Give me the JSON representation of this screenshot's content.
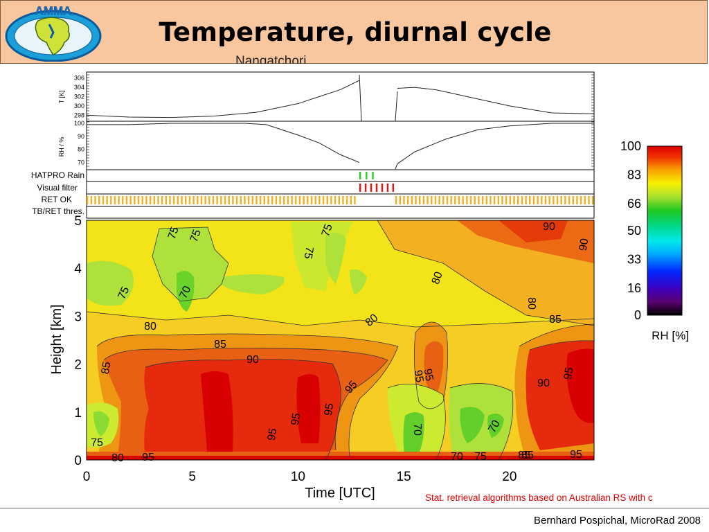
{
  "header": {
    "logo_text": "AMMA",
    "title": "Temperature, diurnal cycle"
  },
  "station_text": "Nangatchori",
  "panels": {
    "temp": {
      "ylabel": "T [K]",
      "ticks": [
        "306",
        "304",
        "302",
        "300",
        "298"
      ]
    },
    "rh": {
      "ylabel": "RH / %",
      "ticks": [
        "100",
        "90",
        "80",
        "70"
      ]
    },
    "flags": [
      "HATPRO Rain",
      "Visual filter",
      "RET OK",
      "TB/RET thres."
    ]
  },
  "chart_data": {
    "type": "heatmap",
    "xlabel": "Time [UTC]",
    "ylabel": "Height [km]",
    "xlim": [
      0,
      24
    ],
    "ylim": [
      0,
      5
    ],
    "x_ticks": [
      "0",
      "5",
      "10",
      "15",
      "20"
    ],
    "y_ticks": [
      "0",
      "1",
      "2",
      "3",
      "4",
      "5"
    ],
    "colorbar": {
      "label": "RH [%]",
      "ticks": [
        "100",
        "83",
        "66",
        "50",
        "33",
        "16",
        "0"
      ],
      "range": [
        0,
        100
      ]
    },
    "contour_labels": [
      "75",
      "75",
      "75",
      "75",
      "75",
      "70",
      "75",
      "70",
      "80",
      "80",
      "85",
      "85",
      "90",
      "95",
      "95",
      "95",
      "95",
      "95",
      "70",
      "70",
      "75",
      "80",
      "80",
      "80",
      "85",
      "85",
      "90",
      "90",
      "95",
      "95",
      "90",
      "85",
      "95",
      "95"
    ],
    "temperature_K": {
      "t": [
        0,
        2,
        4,
        6,
        8,
        10,
        11,
        12,
        12.9,
        13.0,
        14.5,
        14.7,
        15.5,
        16.5,
        18,
        20,
        22,
        24
      ],
      "values": [
        298.0,
        297.6,
        297.5,
        297.8,
        298.6,
        300.5,
        302.0,
        303.5,
        305.5,
        null,
        null,
        303.8,
        304.0,
        303.5,
        302.0,
        300.0,
        298.5,
        298.3
      ]
    },
    "rh_percent": {
      "t": [
        0,
        2,
        4,
        6,
        7.5,
        8.5,
        10,
        11,
        12,
        12.9,
        13.0,
        14.5,
        14.7,
        15.5,
        17,
        18.5,
        20,
        22,
        24
      ],
      "values": [
        99,
        99,
        100,
        100,
        100,
        99,
        91,
        85,
        76,
        70,
        null,
        null,
        69,
        78,
        88,
        95,
        98,
        100,
        100
      ]
    },
    "flags": {
      "rain_periods": [
        [
          12.9,
          13.6
        ]
      ],
      "visual_filter_periods": [
        [
          12.9,
          14.6
        ]
      ],
      "ret_ok_periods": [
        [
          0,
          12.8
        ],
        [
          14.6,
          24
        ]
      ]
    }
  },
  "footer": {
    "author": "Bernhard Pospichal, MicroRad 2008",
    "note": "Stat. retrieval algorithms based on Australian RS with c"
  }
}
